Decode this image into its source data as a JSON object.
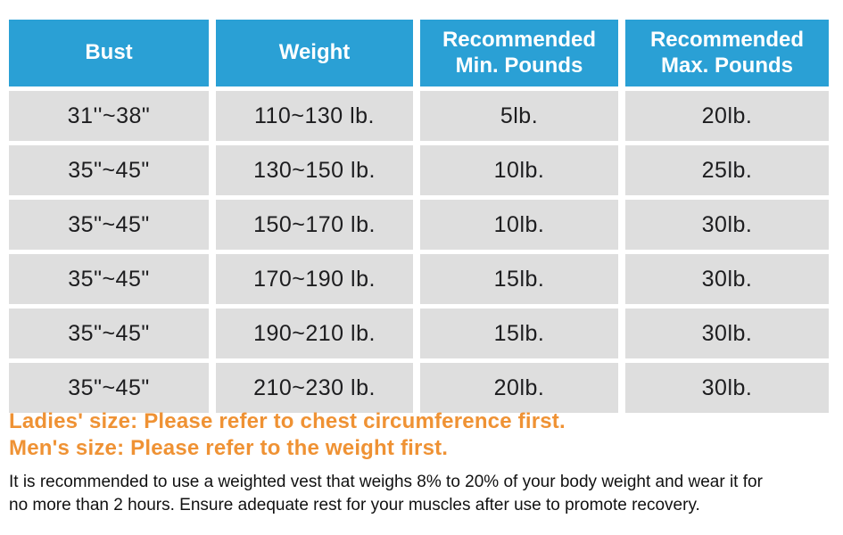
{
  "colors": {
    "header_bg": "#2AA0D5",
    "header_text": "#FFFFFF",
    "row_bg": "#DEDEDE",
    "cell_text": "#1D1D1F",
    "accent_orange": "#EF9234",
    "body_text": "#111111"
  },
  "table": {
    "headers": [
      "Bust",
      "Weight",
      "Recommended Min. Pounds",
      "Recommended Max. Pounds"
    ],
    "rows": [
      [
        "31''~38\"",
        "110~130 lb.",
        "5lb.",
        "20lb."
      ],
      [
        "35\"~45\"",
        "130~150 lb.",
        "10lb.",
        "25lb."
      ],
      [
        "35\"~45\"",
        "150~170 lb.",
        "10lb.",
        "30lb."
      ],
      [
        "35\"~45\"",
        "170~190 lb.",
        "15lb.",
        "30lb."
      ],
      [
        "35\"~45\"",
        "190~210 lb.",
        "15lb.",
        "30lb."
      ],
      [
        "35\"~45\"",
        "210~230 lb.",
        "20lb.",
        "30lb."
      ]
    ]
  },
  "notes": {
    "ladies": "Ladies' size: Please refer to chest circumference first.",
    "mens": "Men's size: Please refer to the weight first.",
    "body": "It is recommended to use a weighted vest that weighs 8% to 20% of your body weight and wear it for no more than 2 hours. Ensure adequate rest for your muscles after use to promote recovery."
  }
}
